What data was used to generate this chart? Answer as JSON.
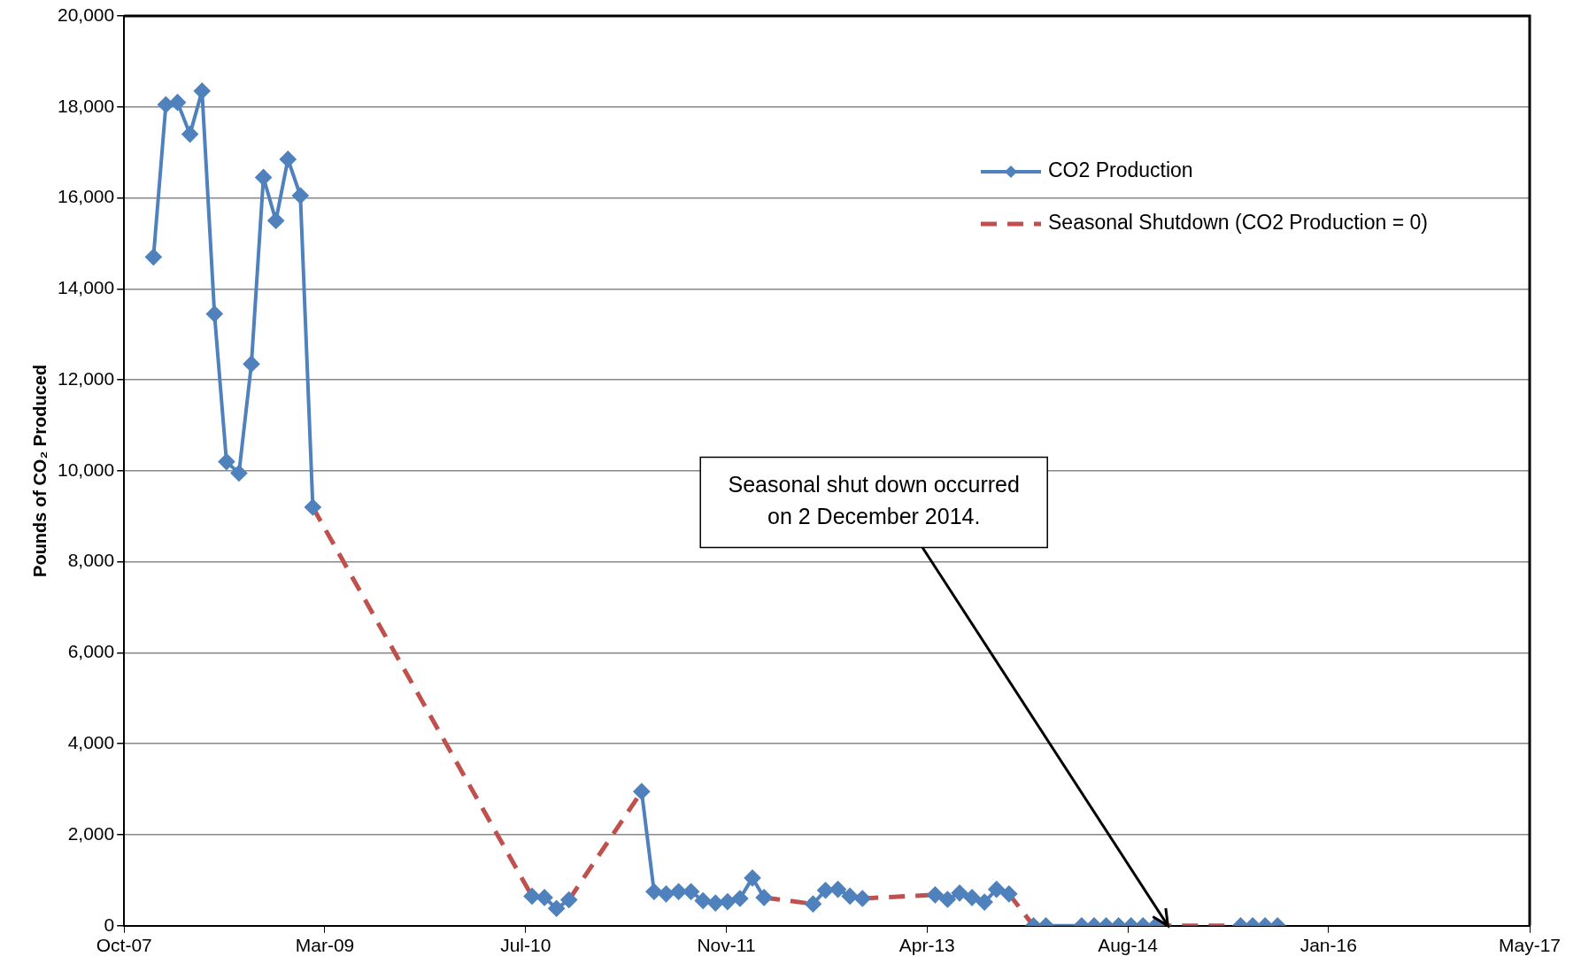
{
  "chart_data": {
    "type": "line",
    "ylabel": "Pounds of CO₂ Produced",
    "xlim": [
      "2007-10-20",
      "2017-05-21"
    ],
    "xticks": [
      {
        "value": "2007-10-20",
        "label": "Oct-07"
      },
      {
        "value": "2009-03-03",
        "label": "Mar-09"
      },
      {
        "value": "2010-07-16",
        "label": "Jul-10"
      },
      {
        "value": "2011-11-28",
        "label": "Nov-11"
      },
      {
        "value": "2013-04-11",
        "label": "Apr-13"
      },
      {
        "value": "2014-08-24",
        "label": "Aug-14"
      },
      {
        "value": "2016-01-06",
        "label": "Jan-16"
      },
      {
        "value": "2017-05-21",
        "label": "May-17"
      }
    ],
    "ylim": [
      0,
      20000
    ],
    "yticks": [
      {
        "value": 0,
        "label": "0"
      },
      {
        "value": 2000,
        "label": "2,000"
      },
      {
        "value": 4000,
        "label": "4,000"
      },
      {
        "value": 6000,
        "label": "6,000"
      },
      {
        "value": 8000,
        "label": "8,000"
      },
      {
        "value": 10000,
        "label": "10,000"
      },
      {
        "value": 12000,
        "label": "12,000"
      },
      {
        "value": 14000,
        "label": "14,000"
      },
      {
        "value": 16000,
        "label": "16,000"
      },
      {
        "value": 18000,
        "label": "18,000"
      },
      {
        "value": 20000,
        "label": "20,000"
      }
    ],
    "grid": "y",
    "legend": "top right",
    "series": [
      {
        "name": "CO2 Production",
        "color": "#4f81bd",
        "marker": "diamond",
        "line_style": "solid",
        "x": [
          "2008-01",
          "2008-02",
          "2008-03",
          "2008-04",
          "2008-05",
          "2008-06",
          "2008-07",
          "2008-08",
          "2008-09",
          "2008-10",
          "2008-11",
          "2008-12",
          "2009-01",
          "2009-02",
          "2009-09",
          "2010-08",
          "2010-09",
          "2010-10",
          "2010-11",
          "2011-02",
          "2011-05",
          "2011-06",
          "2011-07",
          "2011-08",
          "2011-09",
          "2011-10",
          "2011-11",
          "2011-12",
          "2012-01",
          "2012-02",
          "2012-03",
          "2012-05",
          "2012-07",
          "2012-08",
          "2012-09",
          "2012-10",
          "2012-11",
          "2013-02",
          "2013-05",
          "2013-06",
          "2013-07",
          "2013-08",
          "2013-09",
          "2013-10",
          "2013-11",
          "2013-12",
          "2014-01",
          "2014-02",
          "2014-05",
          "2014-06",
          "2014-07",
          "2014-08",
          "2014-09",
          "2014-10",
          "2014-11",
          "2015-02",
          "2015-06",
          "2015-07",
          "2015-08",
          "2015-09"
        ],
        "values": [
          14700,
          18050,
          18100,
          17400,
          18350,
          13450,
          10200,
          9950,
          12350,
          16450,
          15500,
          16850,
          16050,
          9200,
          null,
          650,
          620,
          380,
          570,
          null,
          2950,
          750,
          700,
          750,
          750,
          550,
          500,
          530,
          600,
          1050,
          620,
          null,
          480,
          780,
          800,
          650,
          600,
          null,
          680,
          580,
          720,
          620,
          520,
          800,
          700,
          null,
          0,
          0,
          0,
          0,
          0,
          0,
          0,
          0,
          0,
          null,
          0,
          0,
          0,
          0
        ]
      },
      {
        "name": "Seasonal Shutdown (CO2 Production = 0)",
        "color": "#c0504d",
        "marker": "none",
        "line_style": "dashed",
        "x": [
          "2009-02",
          "2010-08",
          "2010-09",
          "2010-11",
          "2011-05",
          "2011-08",
          "2012-03",
          "2012-07",
          "2012-09",
          "2012-11",
          "2013-05",
          "2013-08",
          "2013-11",
          "2014-01",
          "2014-06",
          "2014-11",
          "2015-06"
        ],
        "values": [
          9200,
          650,
          null,
          570,
          2950,
          null,
          620,
          480,
          null,
          600,
          680,
          null,
          700,
          0,
          null,
          0,
          0
        ]
      }
    ],
    "annotations": [
      {
        "text": "Seasonal shut down occurred on 2 December 2014.",
        "x": "2014-12-02",
        "y": 0
      }
    ]
  }
}
